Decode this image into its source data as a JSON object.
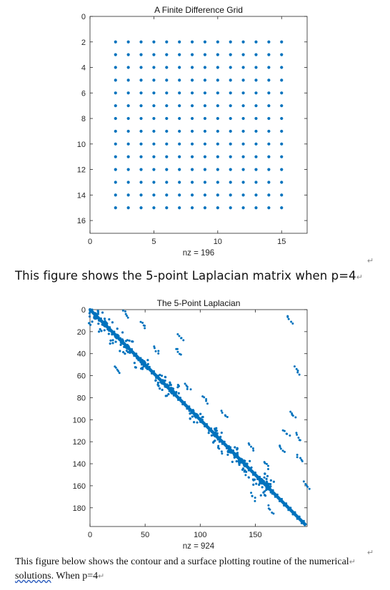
{
  "chart_data": [
    {
      "type": "scatter",
      "title": "A Finite Difference Grid",
      "xlabel": "nz = 196",
      "ylabel": "",
      "xlim": [
        0,
        17
      ],
      "ylim": [
        17,
        0
      ],
      "y_reversed": true,
      "xticks": [
        "0",
        "5",
        "10",
        "15"
      ],
      "yticks": [
        "0",
        "2",
        "4",
        "6",
        "8",
        "10",
        "12",
        "14",
        "16"
      ],
      "grid": false,
      "marker_color": "#0072BD",
      "points": {
        "x_range": [
          2,
          15
        ],
        "y_range": [
          2,
          15
        ],
        "step": 1,
        "count": 196
      }
    },
    {
      "type": "scatter",
      "title": "The 5-Point Laplacian",
      "xlabel": "nz = 924",
      "ylabel": "",
      "xlim": [
        0,
        197
      ],
      "ylim": [
        197,
        0
      ],
      "y_reversed": true,
      "xticks": [
        "0",
        "50",
        "100",
        "150"
      ],
      "yticks": [
        "0",
        "20",
        "40",
        "60",
        "80",
        "100",
        "120",
        "140",
        "160",
        "180"
      ],
      "grid": false,
      "marker_color": "#0072BD",
      "nonzeros": 924,
      "diagonal": [
        0,
        196
      ],
      "clusters": [
        [
          5,
          7
        ],
        [
          14,
          14
        ],
        [
          24,
          24
        ],
        [
          34,
          34
        ],
        [
          47,
          47
        ],
        [
          66,
          66
        ],
        [
          75,
          75
        ],
        [
          96,
          96
        ],
        [
          114,
          114
        ],
        [
          132,
          132
        ],
        [
          141,
          141
        ],
        [
          155,
          155
        ],
        [
          162,
          162
        ]
      ],
      "scatter_groups": [
        [
          33,
          4
        ],
        [
          48,
          14
        ],
        [
          82,
          25
        ],
        [
          60,
          37
        ],
        [
          80,
          38
        ],
        [
          88,
          70
        ],
        [
          25,
          55
        ],
        [
          105,
          82
        ],
        [
          122,
          95
        ],
        [
          118,
          127
        ],
        [
          146,
          124
        ],
        [
          142,
          150
        ],
        [
          148,
          170
        ],
        [
          160,
          141
        ],
        [
          164,
          182
        ],
        [
          174,
          127
        ],
        [
          178,
          112
        ],
        [
          189,
          116
        ],
        [
          188,
          55
        ],
        [
          184,
          95
        ],
        [
          181,
          9
        ],
        [
          196,
          160
        ],
        [
          190,
          135
        ]
      ]
    }
  ],
  "captions": {
    "first": "This figure shows the 5-point Laplacian matrix when p=4",
    "second_line1": "This figure below shows the contour and a surface plotting routine of the numerical",
    "second_word_underlined": "solutions",
    "second_rest": ". When p=4",
    "paragraph_mark": "↵"
  },
  "colors": {
    "marker": "#0072BD",
    "axis": "#262626",
    "text": "#111111"
  }
}
